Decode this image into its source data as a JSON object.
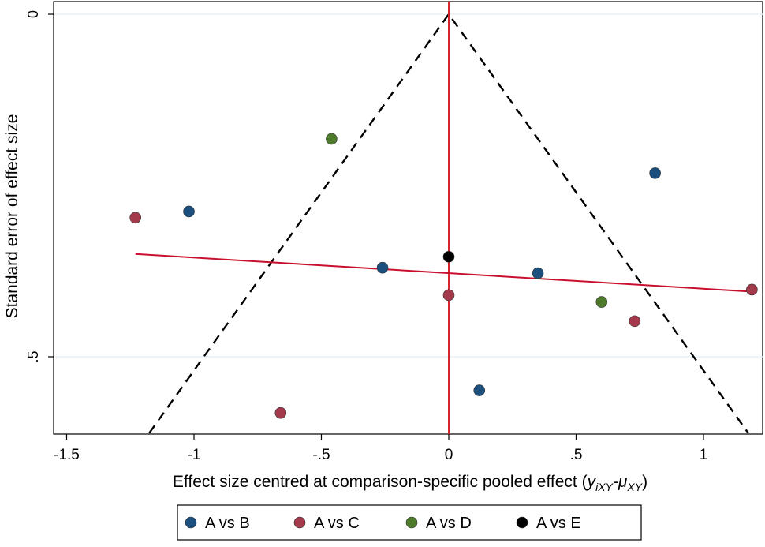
{
  "chart_data": {
    "type": "scatter",
    "subtype": "comparison-adjusted funnel plot",
    "title": "",
    "xlabel_prefix": "Effect size centred at comparison-specific pooled effect (",
    "xlabel_math": "y",
    "xlabel_sub1": "iXY",
    "xlabel_mid": "-μ",
    "xlabel_sub2": "XY",
    "xlabel_suffix": ")",
    "ylabel": "Standard error of effect size",
    "xlim": [
      -1.5,
      1.2
    ],
    "ylim_reversed": [
      0,
      0.61
    ],
    "x_ticks": [
      {
        "value": -1.5,
        "label": "-1.5"
      },
      {
        "value": -1,
        "label": "-1"
      },
      {
        "value": -0.5,
        "label": "-.5"
      },
      {
        "value": 0,
        "label": "0"
      },
      {
        "value": 0.5,
        "label": ".5"
      },
      {
        "value": 1,
        "label": "1"
      }
    ],
    "y_ticks": [
      {
        "value": 0,
        "label": "0"
      },
      {
        "value": 0.5,
        "label": ".5"
      }
    ],
    "funnel": {
      "apex_se": 0,
      "apex_x": 0,
      "bottom_se": 0.6,
      "multiplier": 1.96
    },
    "reference_line_x": 0,
    "fit_line": {
      "x": [
        -1.23,
        1.19
      ],
      "se": [
        0.35,
        0.405
      ]
    },
    "series": [
      {
        "name": "A vs B",
        "color": "#1b4f7d",
        "points": [
          [
            -1.02,
            0.288
          ],
          [
            -0.26,
            0.37
          ],
          [
            0.35,
            0.378
          ],
          [
            0.81,
            0.232
          ],
          [
            0.12,
            0.549
          ]
        ]
      },
      {
        "name": "A vs C",
        "color": "#a33a4b",
        "points": [
          [
            -1.23,
            0.297
          ],
          [
            -0.66,
            0.582
          ],
          [
            0.0,
            0.41
          ],
          [
            0.73,
            0.448
          ],
          [
            1.19,
            0.402
          ]
        ]
      },
      {
        "name": "A vs D",
        "color": "#4e7a2c",
        "points": [
          [
            -0.46,
            0.182
          ],
          [
            0.6,
            0.42
          ]
        ]
      },
      {
        "name": "A vs E",
        "color": "#000000",
        "points": [
          [
            0.0,
            0.354
          ]
        ]
      }
    ],
    "colors": {
      "reference_line": "#d7262b",
      "fit_line": "#c8102e",
      "funnel": "#000000",
      "grid": "#e4eef2"
    }
  }
}
